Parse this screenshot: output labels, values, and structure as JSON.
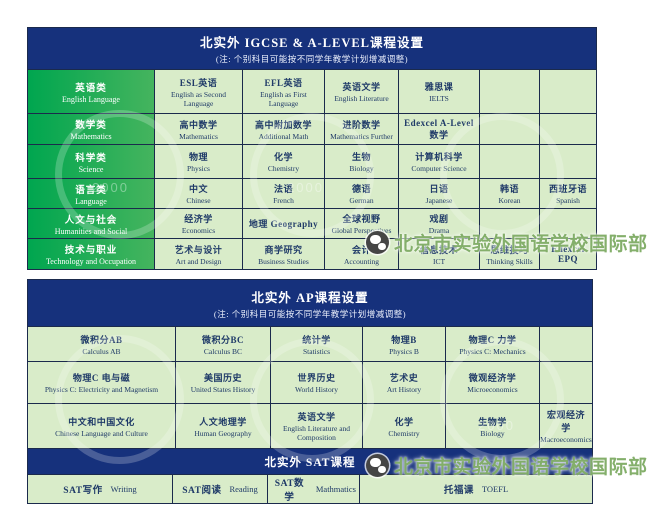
{
  "titles": {
    "table1_title": "北实外 IGCSE & A-LEVEL课程设置",
    "table1_subtitle": "(注: 个别科目可能按不同学年教学计划增减调整)",
    "table2_title": "北实外 AP课程设置",
    "table2_subtitle": "(注: 个别科目可能按不同学年教学计划增减调整)",
    "sat_title": "北实外 SAT课程"
  },
  "colors": {
    "header_bg": "#16317c",
    "cell_bg": "#d9ecc9",
    "category_green_start": "#00a64f",
    "category_green_end": "#45b45e",
    "border": "#1b2a4c",
    "watermark_green": "#7aa85e"
  },
  "watermark": {
    "label": "北京市实验外国语学校国际部",
    "icon": "wechat-icon",
    "seal_year": "2000"
  },
  "table1": {
    "rows": [
      {
        "category": {
          "zh": "英语类",
          "en": "English Language"
        },
        "cells": [
          {
            "zh": "ESL英语",
            "en": "English as Second Language"
          },
          {
            "zh": "EFL英语",
            "en": "English as First Language"
          },
          {
            "zh": "英语文学",
            "en": "English Literature"
          },
          {
            "zh": "雅思课",
            "en": "IELTS"
          },
          {
            "zh": "",
            "en": ""
          },
          {
            "zh": "",
            "en": ""
          }
        ]
      },
      {
        "category": {
          "zh": "数学类",
          "en": "Mathematics"
        },
        "cells": [
          {
            "zh": "高中数学",
            "en": "Mathematics"
          },
          {
            "zh": "高中附加数学",
            "en": "Additional Math"
          },
          {
            "zh": "进阶数学",
            "en": "Mathematics Further"
          },
          {
            "zh": "Edexcel A-Level 数学",
            "en": ""
          },
          {
            "zh": "",
            "en": ""
          },
          {
            "zh": "",
            "en": ""
          }
        ]
      },
      {
        "category": {
          "zh": "科学类",
          "en": "Science"
        },
        "cells": [
          {
            "zh": "物理",
            "en": "Physics"
          },
          {
            "zh": "化学",
            "en": "Chemistry"
          },
          {
            "zh": "生物",
            "en": "Biology"
          },
          {
            "zh": "计算机科学",
            "en": "Computer Science"
          },
          {
            "zh": "",
            "en": ""
          },
          {
            "zh": "",
            "en": ""
          }
        ]
      },
      {
        "category": {
          "zh": "语言类",
          "en": "Language"
        },
        "cells": [
          {
            "zh": "中文",
            "en": "Chinese"
          },
          {
            "zh": "法语",
            "en": "French"
          },
          {
            "zh": "德语",
            "en": "German"
          },
          {
            "zh": "日语",
            "en": "Japanese"
          },
          {
            "zh": "韩语",
            "en": "Korean"
          },
          {
            "zh": "西班牙语",
            "en": "Spanish"
          }
        ]
      },
      {
        "category": {
          "zh": "人文与社会",
          "en": "Humanities and Social"
        },
        "cells": [
          {
            "zh": "经济学",
            "en": "Economics"
          },
          {
            "zh": "地理 Geography",
            "en": ""
          },
          {
            "zh": "全球视野",
            "en": "Global Perspectives"
          },
          {
            "zh": "戏剧",
            "en": "Drama"
          },
          {
            "zh": "",
            "en": ""
          },
          {
            "zh": "",
            "en": ""
          }
        ]
      },
      {
        "category": {
          "zh": "技术与职业",
          "en": "Technology and Occupation"
        },
        "cells": [
          {
            "zh": "艺术与设计",
            "en": "Art and Design"
          },
          {
            "zh": "商学研究",
            "en": "Business Studies"
          },
          {
            "zh": "会计",
            "en": "Accounting"
          },
          {
            "zh": "信息技术",
            "en": "ICT"
          },
          {
            "zh": "思维技巧",
            "en": "Thinking Skills"
          },
          {
            "zh": "Edexcel EPQ",
            "en": ""
          }
        ]
      }
    ]
  },
  "table2": {
    "rows": [
      [
        {
          "zh": "微积分AB",
          "en": "Calculus AB"
        },
        {
          "zh": "微积分BC",
          "en": "Calculus BC"
        },
        {
          "zh": "统计学",
          "en": "Statistics"
        },
        {
          "zh": "物理B",
          "en": "Physics B"
        },
        {
          "zh": "物理C 力学",
          "en": "Physics C: Mechanics"
        },
        {
          "zh": "",
          "en": ""
        }
      ],
      [
        {
          "zh": "物理C 电与磁",
          "en": "Physics C: Electricity and Magnetism"
        },
        {
          "zh": "美国历史",
          "en": "United States History"
        },
        {
          "zh": "世界历史",
          "en": "World History"
        },
        {
          "zh": "艺术史",
          "en": "Art History"
        },
        {
          "zh": "微观经济学",
          "en": "Microeconomics"
        },
        {
          "zh": "",
          "en": ""
        }
      ],
      [
        {
          "zh": "中文和中国文化",
          "en": "Chinese Language and Culture"
        },
        {
          "zh": "人文地理学",
          "en": "Human Geography"
        },
        {
          "zh": "英语文学",
          "en": "English Literature and Composition"
        },
        {
          "zh": "化学",
          "en": "Chemistry"
        },
        {
          "zh": "生物学",
          "en": "Biology"
        },
        {
          "zh": "宏观经济学",
          "en": "Macroeconomics"
        }
      ]
    ],
    "sat_cells": [
      {
        "zh": "SAT写作",
        "en": "Writing"
      },
      {
        "zh": "SAT阅读",
        "en": "Reading"
      },
      {
        "zh": "SAT数学",
        "en": "Mathmatics"
      },
      {
        "zh": "托福课",
        "en": "TOEFL"
      }
    ]
  }
}
